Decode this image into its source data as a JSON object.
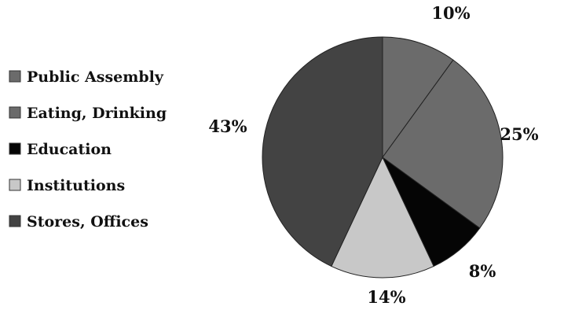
{
  "chart_data": {
    "type": "pie",
    "categories": [
      "Public Assembly",
      "Eating, Drinking",
      "Education",
      "Institutions",
      "Stores, Offices"
    ],
    "values": [
      10,
      25,
      8,
      14,
      43
    ],
    "value_labels": [
      "10%",
      "25%",
      "8%",
      "14%",
      "43%"
    ],
    "colors": [
      "#6b6b6b",
      "#6b6b6b",
      "#050505",
      "#c8c8c8",
      "#434343"
    ],
    "start_angle_deg": 0,
    "direction": "clockwise",
    "legend": "left",
    "title": ""
  }
}
